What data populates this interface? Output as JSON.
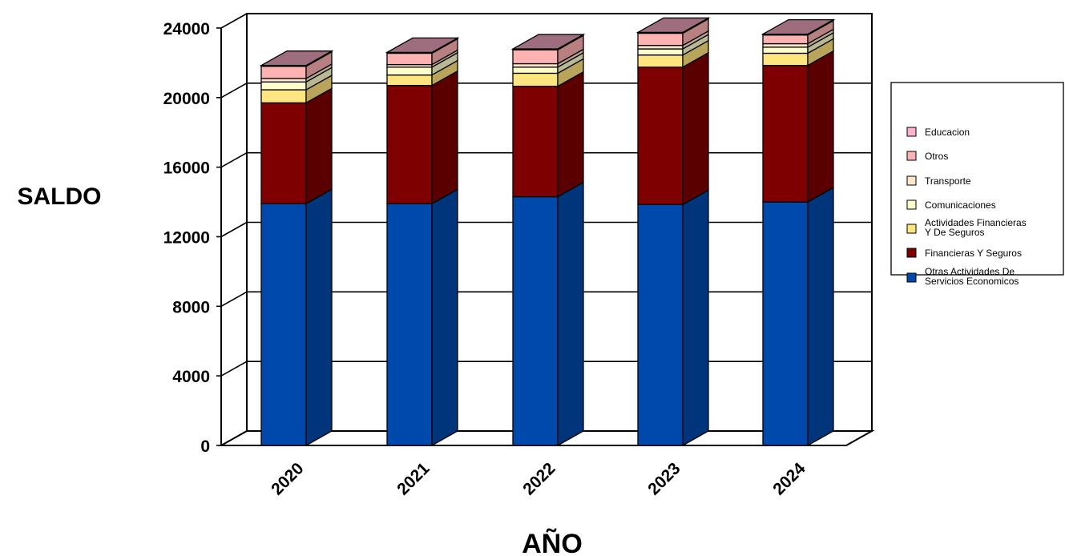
{
  "chart_data": {
    "type": "bar",
    "stacked": true,
    "three_d": true,
    "title": "",
    "xlabel": "AÑO",
    "ylabel": "SALDO",
    "ylim": [
      0,
      24000
    ],
    "yticks": [
      0,
      4000,
      8000,
      12000,
      16000,
      20000,
      24000
    ],
    "ytick_labels": [
      "0",
      "4000",
      "8000",
      "12000",
      "16000",
      "20000",
      "24000"
    ],
    "grid": true,
    "legend_position": "right",
    "categories": [
      "2020",
      "2021",
      "2022",
      "2023",
      "2024"
    ],
    "series": [
      {
        "name": "Otras Actividades De Servicios Economicos",
        "color": "#0049AC",
        "values": [
          13900,
          13900,
          14300,
          13850,
          14000
        ]
      },
      {
        "name": "Financieras Y Seguros",
        "color": "#7F0000",
        "values": [
          5800,
          6800,
          6350,
          7900,
          7850
        ]
      },
      {
        "name": "Actividades Financieras Y De Seguros",
        "color": "#FFE57F",
        "values": [
          750,
          600,
          750,
          700,
          700
        ]
      },
      {
        "name": "Comunicaciones",
        "color": "#FFFFCC",
        "values": [
          450,
          450,
          350,
          350,
          350
        ]
      },
      {
        "name": "Transporte",
        "color": "#FFE5CC",
        "values": [
          200,
          150,
          200,
          200,
          200
        ]
      },
      {
        "name": "Otros",
        "color": "#FFB2B2",
        "values": [
          700,
          650,
          800,
          700,
          500
        ]
      },
      {
        "name": "Educacion",
        "color": "#FFB2CC",
        "values": [
          50,
          50,
          50,
          50,
          50
        ]
      }
    ]
  }
}
